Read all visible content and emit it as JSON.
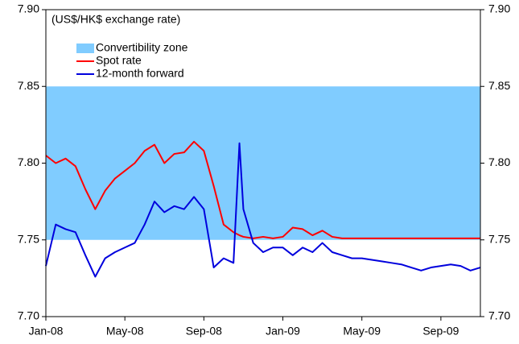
{
  "chart_data": {
    "type": "line",
    "annotation": "(US$/HK$ exchange rate)",
    "bands": [
      {
        "name": "Convertibility zone",
        "from": 7.75,
        "to": 7.85,
        "color": "#80ccff"
      }
    ],
    "x": [
      0,
      0.5,
      1,
      1.5,
      2,
      2.5,
      3,
      3.5,
      4,
      4.5,
      5,
      5.5,
      6,
      6.5,
      7,
      7.5,
      8,
      8.5,
      9,
      9.5,
      9.8,
      10,
      10.5,
      11,
      11.5,
      12,
      12.5,
      13,
      13.5,
      14,
      14.5,
      15,
      15.5,
      16,
      16.5,
      17,
      17.5,
      18,
      18.5,
      19,
      19.5,
      20,
      20.5,
      21,
      21.5,
      22
    ],
    "series": [
      {
        "name": "Spot rate",
        "color": "#ff0000",
        "values": [
          7.805,
          7.8,
          7.803,
          7.798,
          7.783,
          7.77,
          7.782,
          7.79,
          7.795,
          7.8,
          7.808,
          7.812,
          7.8,
          7.806,
          7.807,
          7.814,
          7.808,
          7.785,
          7.76,
          7.755,
          7.753,
          7.752,
          7.751,
          7.752,
          7.751,
          7.752,
          7.758,
          7.757,
          7.753,
          7.756,
          7.752,
          7.751,
          7.751,
          7.751,
          7.751,
          7.751,
          7.751,
          7.751,
          7.751,
          7.751,
          7.751,
          7.751,
          7.751,
          7.751,
          7.751,
          7.751
        ]
      },
      {
        "name": "12-month forward",
        "color": "#0000dd",
        "values": [
          7.733,
          7.76,
          7.757,
          7.755,
          7.74,
          7.726,
          7.738,
          7.742,
          7.745,
          7.748,
          7.76,
          7.775,
          7.768,
          7.772,
          7.77,
          7.778,
          7.77,
          7.732,
          7.738,
          7.735,
          7.813,
          7.77,
          7.748,
          7.742,
          7.745,
          7.745,
          7.74,
          7.745,
          7.742,
          7.748,
          7.742,
          7.74,
          7.738,
          7.738,
          7.737,
          7.736,
          7.735,
          7.734,
          7.732,
          7.73,
          7.732,
          7.733,
          7.734,
          7.733,
          7.73,
          7.732
        ]
      }
    ],
    "xlim": [
      0,
      22
    ],
    "xticks": [
      {
        "value": 0,
        "label": "Jan-08"
      },
      {
        "value": 4,
        "label": "May-08"
      },
      {
        "value": 8,
        "label": "Sep-08"
      },
      {
        "value": 12,
        "label": "Jan-09"
      },
      {
        "value": 16,
        "label": "May-09"
      },
      {
        "value": 20,
        "label": "Sep-09"
      }
    ],
    "ylim": [
      7.7,
      7.9
    ],
    "yticks": [
      {
        "value": 7.7,
        "label": "7.70"
      },
      7.75,
      {
        "value": 7.8,
        "label": "7.80"
      },
      7.85,
      {
        "value": 7.9,
        "label": "7.90"
      }
    ],
    "y2lim": [
      7.7,
      7.9
    ],
    "y2ticks": [
      {
        "value": 7.7,
        "label": "7.70"
      },
      7.75,
      {
        "value": 7.8,
        "label": "7.80"
      },
      7.85,
      {
        "value": 7.9,
        "label": "7.90"
      }
    ]
  }
}
